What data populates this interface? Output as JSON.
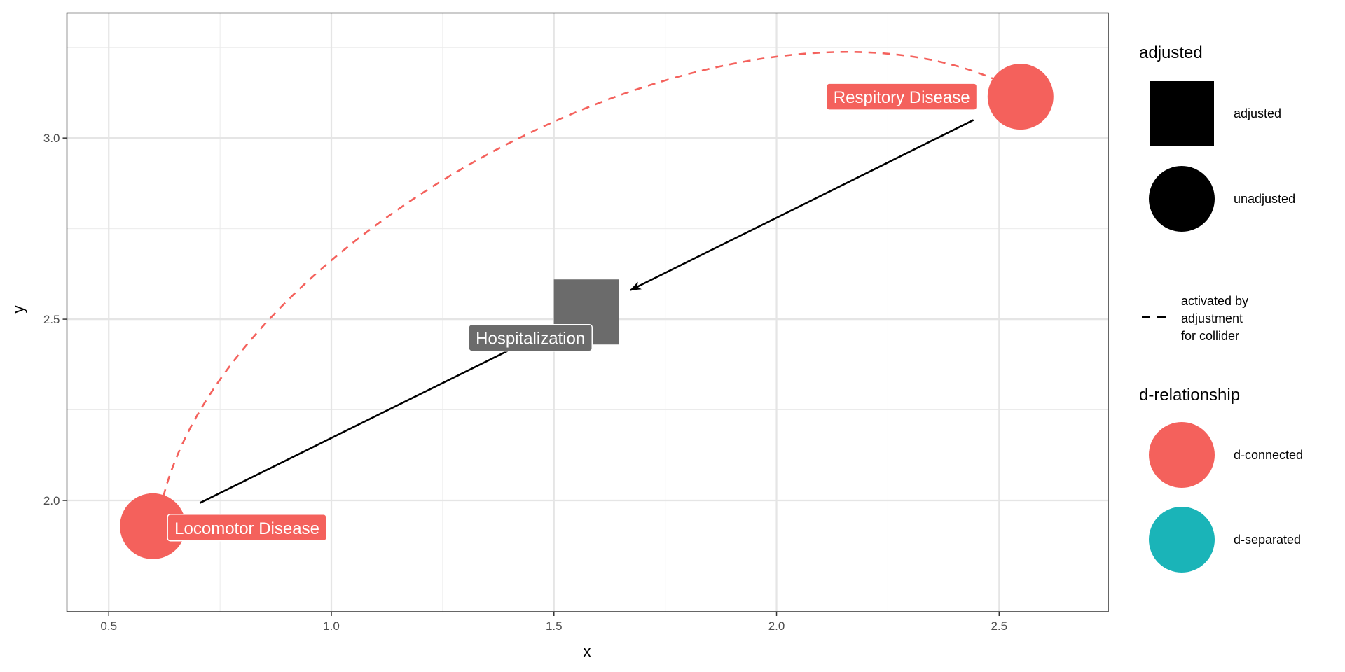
{
  "chart_data": {
    "type": "dag",
    "xlabel": "x",
    "ylabel": "y",
    "xlim": [
      0.406,
      2.745
    ],
    "ylim": [
      1.693,
      3.345
    ],
    "x_ticks": [
      "0.5",
      "1.0",
      "1.5",
      "2.0",
      "2.5"
    ],
    "x_tick_values": [
      0.5,
      1.0,
      1.5,
      2.0,
      2.5
    ],
    "y_ticks": [
      "2.0",
      "2.5",
      "3.0"
    ],
    "y_tick_values": [
      2.0,
      2.5,
      3.0
    ],
    "grid": true,
    "nodes": [
      {
        "name": "Locomotor Disease",
        "x": 0.599,
        "y": 1.929,
        "adjusted": "unadjusted",
        "d_relationship": "d-connected"
      },
      {
        "name": "Hospitalization",
        "x": 1.573,
        "y": 2.52,
        "adjusted": "adjusted",
        "d_relationship": ""
      },
      {
        "name": "Respitory Disease",
        "x": 2.548,
        "y": 3.114,
        "adjusted": "unadjusted",
        "d_relationship": "d-connected"
      }
    ],
    "edges": [
      {
        "from": "Locomotor Disease",
        "to": "Hospitalization",
        "style": "solid"
      },
      {
        "from": "Respitory Disease",
        "to": "Hospitalization",
        "style": "solid"
      },
      {
        "from": "Locomotor Disease",
        "to": "Respitory Disease",
        "style": "dashed",
        "meaning": "activated by adjustment for collider"
      }
    ],
    "legend": {
      "placement": "right",
      "adjusted": {
        "title": "adjusted",
        "items": [
          "adjusted",
          "unadjusted"
        ]
      },
      "linetype": {
        "items": [
          "activated by",
          "adjustment",
          "for collider"
        ]
      },
      "d_relationship": {
        "title": "d-relationship",
        "items": [
          "d-connected",
          "d-separated"
        ]
      }
    },
    "colors": {
      "d-connected": "#F4615C",
      "d-separated": "#1AB4B8",
      "adjusted_node": "#6B6B6B",
      "edge": "#000000"
    }
  }
}
